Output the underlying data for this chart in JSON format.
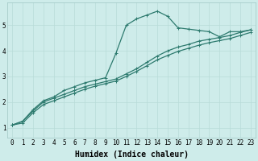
{
  "xlabel": "Humidex (Indice chaleur)",
  "ylabel": "",
  "background_color": "#ceecea",
  "line_color": "#2d7a6e",
  "grid_color": "#b8dbd8",
  "xlim": [
    -0.5,
    23.5
  ],
  "ylim": [
    0.6,
    5.9
  ],
  "xticks": [
    0,
    1,
    2,
    3,
    4,
    5,
    6,
    7,
    8,
    9,
    10,
    11,
    12,
    13,
    14,
    15,
    16,
    17,
    18,
    19,
    20,
    21,
    22,
    23
  ],
  "yticks": [
    1,
    2,
    3,
    4,
    5
  ],
  "line1_x": [
    0,
    1,
    2,
    3,
    4,
    5,
    6,
    7,
    8,
    9,
    10,
    11,
    12,
    13,
    14,
    15,
    16,
    17,
    18,
    19,
    20,
    21,
    22,
    23
  ],
  "line1_y": [
    1.1,
    1.25,
    1.7,
    2.05,
    2.2,
    2.45,
    2.6,
    2.75,
    2.85,
    2.95,
    3.9,
    5.0,
    5.25,
    5.4,
    5.55,
    5.35,
    4.9,
    4.85,
    4.8,
    4.75,
    4.55,
    4.75,
    4.75,
    4.82
  ],
  "line2_x": [
    0,
    1,
    2,
    3,
    4,
    5,
    6,
    7,
    8,
    9,
    10,
    11,
    12,
    13,
    14,
    15,
    16,
    17,
    18,
    19,
    20,
    21,
    22,
    23
  ],
  "line2_y": [
    1.1,
    1.25,
    1.65,
    2.0,
    2.15,
    2.3,
    2.45,
    2.6,
    2.7,
    2.8,
    2.9,
    3.1,
    3.3,
    3.55,
    3.8,
    4.0,
    4.15,
    4.25,
    4.38,
    4.45,
    4.52,
    4.6,
    4.72,
    4.82
  ],
  "line3_x": [
    0,
    1,
    2,
    3,
    4,
    5,
    6,
    7,
    8,
    9,
    10,
    11,
    12,
    13,
    14,
    15,
    16,
    17,
    18,
    19,
    20,
    21,
    22,
    23
  ],
  "line3_y": [
    1.1,
    1.18,
    1.58,
    1.9,
    2.05,
    2.2,
    2.35,
    2.5,
    2.62,
    2.72,
    2.82,
    3.0,
    3.2,
    3.42,
    3.65,
    3.82,
    3.98,
    4.1,
    4.22,
    4.32,
    4.4,
    4.48,
    4.6,
    4.72
  ],
  "marker": "+",
  "marker_size": 3,
  "line_width": 0.9,
  "xlabel_fontsize": 7,
  "tick_fontsize": 5.5
}
